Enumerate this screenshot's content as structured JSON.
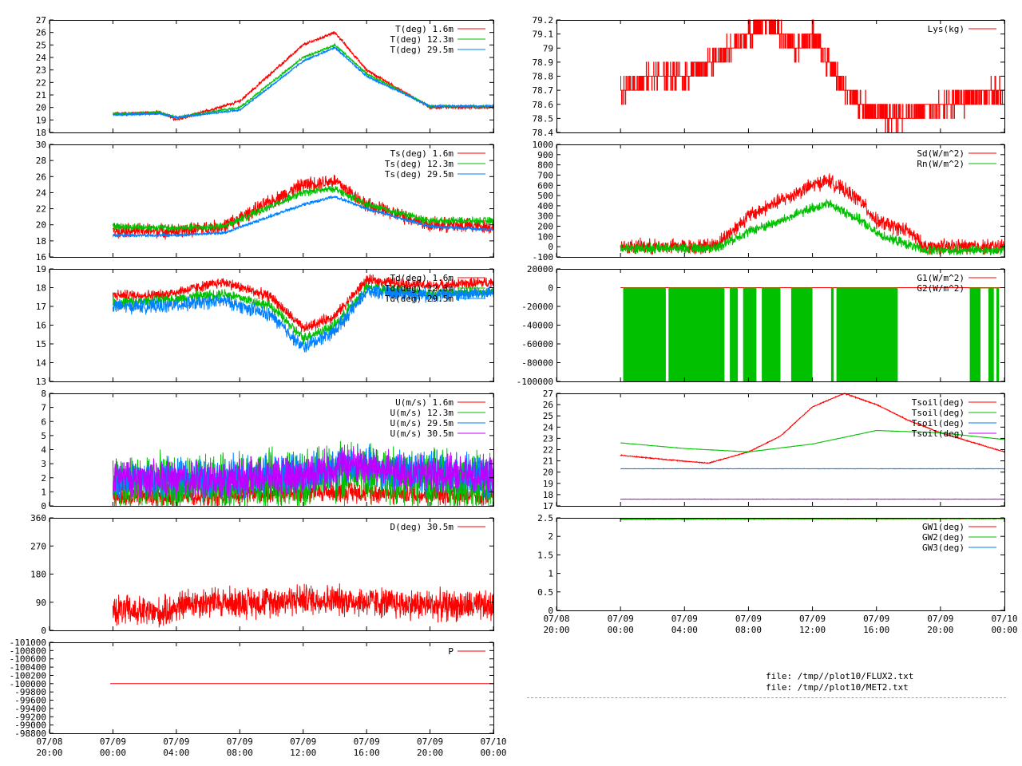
{
  "colors": {
    "red": "#ff0000",
    "green": "#00c000",
    "blue": "#0080ff",
    "purple": "#c000ff",
    "axis": "#000000"
  },
  "files": [
    "file: /tmp//plot10/FLUX2.txt",
    "file: /tmp//plot10/MET2.txt"
  ],
  "chart_data": [
    {
      "id": "air-temperature",
      "type": "line",
      "xlim": [
        "07/08 20:00",
        "07/10 00:00"
      ],
      "xticks": [],
      "ylim": [
        18,
        27
      ],
      "yticks": [
        "18",
        "19",
        "20",
        "21",
        "22",
        "23",
        "24",
        "25",
        "26",
        "27"
      ],
      "series": [
        {
          "name": "T(deg)  1.6m",
          "color": "red",
          "x": [
            "07/09 00:00",
            "07/09 03:00",
            "07/09 04:00",
            "07/09 08:00",
            "07/09 12:00",
            "07/09 14:00",
            "07/09 16:00",
            "07/09 20:00",
            "07/10 00:00"
          ],
          "values": [
            19.5,
            19.6,
            19.0,
            20.5,
            25.0,
            26.0,
            23.0,
            20.0,
            20.0
          ],
          "noise": 0.15
        },
        {
          "name": "T(deg) 12.3m",
          "color": "green",
          "x": [
            "07/09 00:00",
            "07/09 03:00",
            "07/09 04:00",
            "07/09 08:00",
            "07/09 12:00",
            "07/09 14:00",
            "07/09 16:00",
            "07/09 20:00",
            "07/10 00:00"
          ],
          "values": [
            19.5,
            19.6,
            19.2,
            20.0,
            24.0,
            25.0,
            22.7,
            20.1,
            20.1
          ],
          "noise": 0.12
        },
        {
          "name": "T(deg) 29.5m",
          "color": "blue",
          "x": [
            "07/09 00:00",
            "07/09 03:00",
            "07/09 04:00",
            "07/09 08:00",
            "07/09 12:00",
            "07/09 14:00",
            "07/09 16:00",
            "07/09 20:00",
            "07/10 00:00"
          ],
          "values": [
            19.4,
            19.5,
            19.2,
            19.8,
            23.7,
            24.8,
            22.5,
            20.1,
            20.1
          ],
          "noise": 0.1
        }
      ]
    },
    {
      "id": "sonic-temperature",
      "type": "line",
      "xlim": [
        "07/08 20:00",
        "07/10 00:00"
      ],
      "xticks": [],
      "ylim": [
        16,
        30
      ],
      "yticks": [
        "16",
        "18",
        "20",
        "22",
        "24",
        "26",
        "28",
        "30"
      ],
      "series": [
        {
          "name": "Ts(deg)  1.6m",
          "color": "red",
          "x": [
            "07/09 00:00",
            "07/09 04:00",
            "07/09 07:00",
            "07/09 12:00",
            "07/09 14:00",
            "07/09 16:00",
            "07/09 20:00",
            "07/10 00:00"
          ],
          "values": [
            19.4,
            19.2,
            19.8,
            25.0,
            25.5,
            22.5,
            20.0,
            19.8
          ],
          "noise": 1.1
        },
        {
          "name": "Ts(deg) 12.3m",
          "color": "green",
          "x": [
            "07/09 00:00",
            "07/09 04:00",
            "07/09 07:00",
            "07/09 12:00",
            "07/09 14:00",
            "07/09 16:00",
            "07/09 20:00",
            "07/10 00:00"
          ],
          "values": [
            19.8,
            19.6,
            19.8,
            24.0,
            24.5,
            22.5,
            20.5,
            20.5
          ],
          "noise": 0.55
        },
        {
          "name": "Ts(deg) 29.5m",
          "color": "blue",
          "x": [
            "07/09 00:00",
            "07/09 04:00",
            "07/09 07:00",
            "07/09 12:00",
            "07/09 14:00",
            "07/09 16:00",
            "07/09 20:00",
            "07/10 00:00"
          ],
          "values": [
            18.7,
            18.7,
            19.0,
            22.5,
            23.5,
            22.0,
            19.8,
            19.4
          ],
          "noise": 0.25
        }
      ]
    },
    {
      "id": "dewpoint",
      "type": "line",
      "xlim": [
        "07/08 20:00",
        "07/10 00:00"
      ],
      "xticks": [],
      "ylim": [
        13,
        19
      ],
      "yticks": [
        "13",
        "14",
        "15",
        "16",
        "17",
        "18",
        "19"
      ],
      "series": [
        {
          "name": "Td(deg)  1.6m",
          "color": "red",
          "x": [
            "07/09 00:00",
            "07/09 03:00",
            "07/09 07:00",
            "07/09 10:00",
            "07/09 12:00",
            "07/09 14:00",
            "07/09 16:00",
            "07/09 20:00",
            "07/10 00:00"
          ],
          "values": [
            17.6,
            17.6,
            18.3,
            17.5,
            15.8,
            16.5,
            18.4,
            18.1,
            18.3
          ],
          "noise": 0.35
        },
        {
          "name": "Td(deg) 12.3m",
          "color": "green",
          "x": [
            "07/09 00:00",
            "07/09 03:00",
            "07/09 07:00",
            "07/09 10:00",
            "07/09 12:00",
            "07/09 14:00",
            "07/09 16:00",
            "07/09 20:00",
            "07/10 00:00"
          ],
          "values": [
            17.2,
            17.3,
            17.7,
            17.0,
            15.3,
            16.0,
            18.0,
            17.7,
            17.8
          ],
          "noise": 0.35
        },
        {
          "name": "Td(deg) 29.5m",
          "color": "blue",
          "x": [
            "07/09 00:00",
            "07/09 03:00",
            "07/09 07:00",
            "07/09 10:00",
            "07/09 12:00",
            "07/09 14:00",
            "07/09 16:00",
            "07/09 20:00",
            "07/10 00:00"
          ],
          "values": [
            17.0,
            17.0,
            17.3,
            16.5,
            14.8,
            15.7,
            17.8,
            17.6,
            17.7
          ],
          "noise": 0.45
        }
      ]
    },
    {
      "id": "wind-speed",
      "type": "line",
      "xlim": [
        "07/08 20:00",
        "07/10 00:00"
      ],
      "xticks": [],
      "ylim": [
        0,
        8
      ],
      "yticks": [
        "0",
        "1",
        "2",
        "3",
        "4",
        "5",
        "6",
        "7",
        "8"
      ],
      "series": [
        {
          "name": "U(m/s)  1.6m",
          "color": "red",
          "x": [
            "07/09 00:00",
            "07/09 06:00",
            "07/09 12:00",
            "07/09 15:00",
            "07/09 18:00",
            "07/10 00:00"
          ],
          "values": [
            0.7,
            0.7,
            1.0,
            1.0,
            0.9,
            0.7
          ],
          "noise": 0.9
        },
        {
          "name": "U(m/s) 12.3m",
          "color": "green",
          "x": [
            "07/09 00:00",
            "07/09 06:00",
            "07/09 12:00",
            "07/09 15:00",
            "07/09 18:00",
            "07/10 00:00"
          ],
          "values": [
            1.6,
            1.5,
            2.0,
            2.5,
            2.0,
            1.7
          ],
          "noise": 2.5
        },
        {
          "name": "U(m/s) 29.5m",
          "color": "blue",
          "x": [
            "07/09 00:00",
            "07/09 06:00",
            "07/09 12:00",
            "07/09 15:00",
            "07/09 18:00",
            "07/10 00:00"
          ],
          "values": [
            2.0,
            1.9,
            2.3,
            3.0,
            2.4,
            2.1
          ],
          "noise": 1.8
        },
        {
          "name": "U(m/s) 30.5m",
          "color": "purple",
          "x": [
            "07/09 00:00",
            "07/09 06:00",
            "07/09 12:00",
            "07/09 15:00",
            "07/09 18:00",
            "07/10 00:00"
          ],
          "values": [
            2.0,
            1.8,
            2.2,
            3.0,
            2.4,
            2.1
          ],
          "noise": 1.6
        }
      ]
    },
    {
      "id": "wind-direction",
      "type": "line",
      "xlim": [
        "07/08 20:00",
        "07/10 00:00"
      ],
      "xticks": [],
      "ylim": [
        0,
        360
      ],
      "yticks": [
        "0",
        "90",
        "180",
        "270",
        "360"
      ],
      "series": [
        {
          "name": "D(deg)  30.5m",
          "color": "red",
          "x": [
            "07/09 00:00",
            "07/09 03:00",
            "07/09 05:00",
            "07/09 09:00",
            "07/09 12:00",
            "07/09 15:00",
            "07/09 18:00",
            "07/10 00:00"
          ],
          "values": [
            65,
            55,
            90,
            90,
            100,
            95,
            85,
            75
          ],
          "noise": 60
        }
      ]
    },
    {
      "id": "pressure",
      "type": "line",
      "xlim": [
        "07/08 20:00",
        "07/10 00:00"
      ],
      "xticks": [
        "07/08\n20:00",
        "07/09\n00:00",
        "07/09\n04:00",
        "07/09\n08:00",
        "07/09\n12:00",
        "07/09\n16:00",
        "07/09\n20:00",
        "07/10\n00:00"
      ],
      "ylim": [
        -101000,
        -98800
      ],
      "yticks": [
        "-101000",
        "-100800",
        "-100600",
        "-100400",
        "-100200",
        "-100000",
        "-99800",
        "-99600",
        "-99400",
        "-99200",
        "-99000",
        "-98800"
      ],
      "yreversed": true,
      "series": [
        {
          "name": "P",
          "color": "red",
          "x": [
            "07/08 23:50",
            "07/10 00:00"
          ],
          "values": [
            -100000,
            -100000
          ],
          "noise": 0
        }
      ]
    },
    {
      "id": "lysimeter",
      "type": "line",
      "xlim": [
        "07/08 20:00",
        "07/10 00:00"
      ],
      "xticks": [],
      "ylim": [
        78.4,
        79.2
      ],
      "yticks": [
        "78.4",
        "78.5",
        "78.6",
        "78.7",
        "78.8",
        "78.9",
        "79",
        "79.1",
        "79.2"
      ],
      "series": [
        {
          "name": "Lys(kg)",
          "color": "red",
          "step": true,
          "x": [
            "07/09 00:00",
            "07/09 02:00",
            "07/09 04:00",
            "07/09 07:00",
            "07/09 09:00",
            "07/09 11:00",
            "07/09 12:00",
            "07/09 14:00",
            "07/09 15:00",
            "07/09 17:00",
            "07/09 20:00",
            "07/10 00:00"
          ],
          "values": [
            78.7,
            78.8,
            78.8,
            79.0,
            79.2,
            79.0,
            79.1,
            78.7,
            78.6,
            78.5,
            78.6,
            78.7
          ],
          "noise": 0.1
        }
      ]
    },
    {
      "id": "radiation",
      "type": "line",
      "xlim": [
        "07/08 20:00",
        "07/10 00:00"
      ],
      "xticks": [],
      "ylim": [
        -100,
        1000
      ],
      "yticks": [
        "-100",
        "0",
        "100",
        "200",
        "300",
        "400",
        "500",
        "600",
        "700",
        "800",
        "900",
        "1000"
      ],
      "series": [
        {
          "name": "Sd(W/m^2)",
          "color": "red",
          "x": [
            "07/09 00:00",
            "07/09 05:00",
            "07/09 06:00",
            "07/09 08:00",
            "07/09 10:00",
            "07/09 12:00",
            "07/09 13:00",
            "07/09 15:00",
            "07/09 16:00",
            "07/09 17:00",
            "07/09 18:00",
            "07/09 19:00",
            "07/10 00:00"
          ],
          "values": [
            0,
            0,
            20,
            300,
            450,
            600,
            650,
            450,
            250,
            200,
            150,
            0,
            0
          ],
          "noise": 90
        },
        {
          "name": "Rn(W/m^2)",
          "color": "green",
          "x": [
            "07/09 00:00",
            "07/09 05:00",
            "07/09 06:00",
            "07/09 08:00",
            "07/09 10:00",
            "07/09 12:00",
            "07/09 13:00",
            "07/09 15:00",
            "07/09 16:00",
            "07/09 17:00",
            "07/09 18:00",
            "07/09 19:00",
            "07/10 00:00"
          ],
          "values": [
            -15,
            -15,
            -10,
            150,
            250,
            380,
            420,
            260,
            130,
            70,
            20,
            -40,
            -30
          ],
          "noise": 60
        }
      ]
    },
    {
      "id": "ground-heat-flux",
      "type": "line",
      "xlim": [
        "07/08 20:00",
        "07/10 00:00"
      ],
      "xticks": [],
      "ylim": [
        -100000,
        20000
      ],
      "yticks": [
        "-100000",
        "-80000",
        "-60000",
        "-40000",
        "-20000",
        "0",
        "20000"
      ],
      "series": [
        {
          "name": "G1(W/m^2)",
          "color": "red",
          "x": [
            "07/09 00:00",
            "07/10 00:00"
          ],
          "values": [
            0,
            0
          ],
          "noise": 0
        },
        {
          "name": "G2(W/m^2)",
          "color": "green",
          "bands": [
            [
              "07/09 00:10",
              "07/09 02:50"
            ],
            [
              "07/09 03:00",
              "07/09 06:30"
            ],
            [
              "07/09 06:50",
              "07/09 07:20"
            ],
            [
              "07/09 07:40",
              "07/09 08:30"
            ],
            [
              "07/09 08:50",
              "07/09 10:00"
            ],
            [
              "07/09 10:40",
              "07/09 12:00"
            ],
            [
              "07/09 13:10",
              "07/09 13:20"
            ],
            [
              "07/09 13:30",
              "07/09 17:20"
            ],
            [
              "07/09 21:50",
              "07/09 22:30"
            ],
            [
              "07/09 23:00",
              "07/09 23:20"
            ],
            [
              "07/09 23:30",
              "07/09 23:40"
            ]
          ],
          "values": [
            0,
            -100000
          ],
          "noise": 0
        }
      ]
    },
    {
      "id": "soil-temperature",
      "type": "line",
      "xlim": [
        "07/08 20:00",
        "07/10 00:00"
      ],
      "xticks": [],
      "ylim": [
        17,
        27
      ],
      "yticks": [
        "17",
        "18",
        "19",
        "20",
        "21",
        "22",
        "23",
        "24",
        "25",
        "26",
        "27"
      ],
      "series": [
        {
          "name": "Tsoil(deg)",
          "color": "red",
          "x": [
            "07/09 00:00",
            "07/09 03:00",
            "07/09 05:30",
            "07/09 08:00",
            "07/09 10:00",
            "07/09 12:00",
            "07/09 14:00",
            "07/09 16:00",
            "07/09 18:00",
            "07/09 20:00",
            "07/10 00:00"
          ],
          "values": [
            21.5,
            21.1,
            20.8,
            21.8,
            23.2,
            25.8,
            27.0,
            26.0,
            24.6,
            23.5,
            21.8
          ],
          "noise": 0.05
        },
        {
          "name": "Tsoil(deg)",
          "color": "green",
          "x": [
            "07/09 00:00",
            "07/09 04:00",
            "07/09 08:00",
            "07/09 12:00",
            "07/09 16:00",
            "07/09 20:00",
            "07/10 00:00"
          ],
          "values": [
            22.6,
            22.1,
            21.8,
            22.5,
            23.7,
            23.5,
            22.9
          ],
          "noise": 0.02
        },
        {
          "name": "Tsoil(deg)",
          "color": "blue",
          "x": [
            "07/09 00:00",
            "07/10 00:00"
          ],
          "values": [
            20.3,
            20.3
          ],
          "noise": 0.02
        },
        {
          "name": "Tsoil(deg)",
          "color": "purple",
          "x": [
            "07/09 00:00",
            "07/10 00:00"
          ],
          "values": [
            17.6,
            17.6
          ],
          "noise": 0.02
        }
      ]
    },
    {
      "id": "groundwater",
      "type": "line",
      "xlim": [
        "07/08 20:00",
        "07/10 00:00"
      ],
      "xticks": [
        "07/08\n20:00",
        "07/09\n00:00",
        "07/09\n04:00",
        "07/09\n08:00",
        "07/09\n12:00",
        "07/09\n16:00",
        "07/09\n20:00",
        "07/10\n00:00"
      ],
      "ylim": [
        0,
        2.5
      ],
      "yticks": [
        "0",
        "0.5",
        "1",
        "1.5",
        "2",
        "2.5"
      ],
      "series": [
        {
          "name": "GW1(deg)",
          "color": "red",
          "x": [
            "07/09 00:00",
            "07/10 00:00"
          ],
          "values": [
            2.46,
            2.48
          ],
          "noise": 0.01
        },
        {
          "name": "GW2(deg)",
          "color": "green",
          "x": [
            "07/09 00:00",
            "07/10 00:00"
          ],
          "values": [
            2.47,
            2.48
          ],
          "noise": 0.01
        },
        {
          "name": "GW3(deg)",
          "color": "blue",
          "x": [],
          "values": [],
          "noise": 0
        }
      ]
    }
  ]
}
